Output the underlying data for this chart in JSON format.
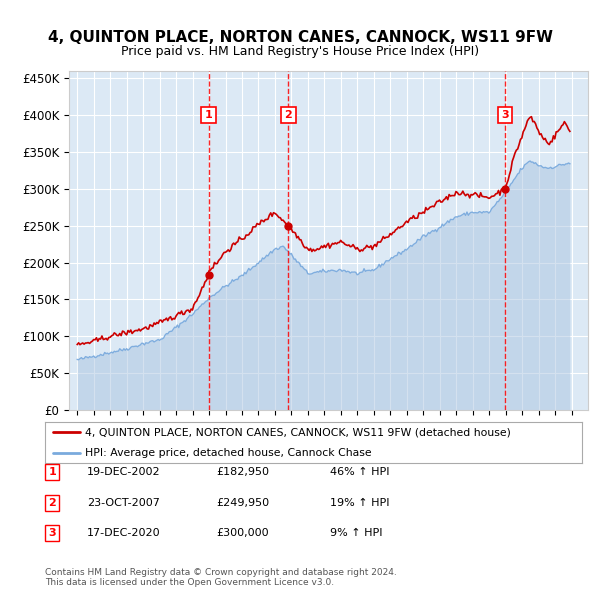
{
  "title": "4, QUINTON PLACE, NORTON CANES, CANNOCK, WS11 9FW",
  "subtitle": "Price paid vs. HM Land Registry's House Price Index (HPI)",
  "legend_line1": "4, QUINTON PLACE, NORTON CANES, CANNOCK, WS11 9FW (detached house)",
  "legend_line2": "HPI: Average price, detached house, Cannock Chase",
  "footer1": "Contains HM Land Registry data © Crown copyright and database right 2024.",
  "footer2": "This data is licensed under the Open Government Licence v3.0.",
  "transactions": [
    {
      "label": "1",
      "date": "19-DEC-2002",
      "price": 182950,
      "pct": "46% ↑ HPI",
      "x": 2002.97
    },
    {
      "label": "2",
      "date": "23-OCT-2007",
      "price": 249950,
      "pct": "19% ↑ HPI",
      "x": 2007.81
    },
    {
      "label": "3",
      "date": "17-DEC-2020",
      "price": 300000,
      "pct": "9% ↑ HPI",
      "x": 2020.97
    }
  ],
  "hpi_color": "#aac4e0",
  "price_color": "#cc0000",
  "hpi_line_color": "#7aaadd",
  "background_color": "#dce9f5",
  "ylim": [
    0,
    460000
  ],
  "xlim": [
    1994.5,
    2026.0
  ],
  "yticks": [
    0,
    50000,
    100000,
    150000,
    200000,
    250000,
    300000,
    350000,
    400000,
    450000
  ],
  "ytick_labels": [
    "£0",
    "£50K",
    "£100K",
    "£150K",
    "£200K",
    "£250K",
    "£300K",
    "£350K",
    "£400K",
    "£450K"
  ],
  "xticks": [
    1995,
    1996,
    1997,
    1998,
    1999,
    2000,
    2001,
    2002,
    2003,
    2004,
    2005,
    2006,
    2007,
    2008,
    2009,
    2010,
    2011,
    2012,
    2013,
    2014,
    2015,
    2016,
    2017,
    2018,
    2019,
    2020,
    2021,
    2022,
    2023,
    2024,
    2025
  ],
  "hpi_anchors_x": [
    1995.0,
    1996.0,
    1997.0,
    1998.0,
    1999.0,
    2000.0,
    2001.0,
    2002.0,
    2003.0,
    2004.0,
    2004.5,
    2005.0,
    2006.0,
    2007.0,
    2007.5,
    2008.0,
    2009.0,
    2010.0,
    2011.0,
    2012.0,
    2013.0,
    2014.0,
    2015.0,
    2016.0,
    2017.0,
    2018.0,
    2019.0,
    2020.0,
    2021.0,
    2021.5,
    2022.0,
    2022.5,
    2023.0,
    2023.5,
    2024.0,
    2024.5,
    2024.9
  ],
  "hpi_anchors_y": [
    68000,
    73000,
    78000,
    83000,
    90000,
    95000,
    112000,
    130000,
    152000,
    168000,
    175000,
    182000,
    200000,
    218000,
    222000,
    210000,
    185000,
    188000,
    190000,
    185000,
    190000,
    205000,
    218000,
    235000,
    248000,
    262000,
    268000,
    268000,
    295000,
    312000,
    328000,
    338000,
    332000,
    328000,
    330000,
    333000,
    335000
  ],
  "price_anchors_x": [
    1995.0,
    1996.0,
    1997.0,
    1998.0,
    1999.0,
    2000.0,
    2001.0,
    2002.0,
    2002.97,
    2003.0,
    2003.5,
    2004.0,
    2005.0,
    2006.0,
    2007.0,
    2007.81,
    2008.0,
    2008.5,
    2009.0,
    2009.5,
    2010.0,
    2011.0,
    2012.0,
    2013.0,
    2014.0,
    2015.0,
    2016.0,
    2017.0,
    2018.0,
    2019.0,
    2020.0,
    2020.97,
    2021.0,
    2021.5,
    2022.0,
    2022.3,
    2022.5,
    2022.8,
    2023.0,
    2023.3,
    2023.7,
    2024.0,
    2024.3,
    2024.6,
    2024.9
  ],
  "price_anchors_y": [
    88000,
    93000,
    100000,
    105000,
    110000,
    118000,
    128000,
    138000,
    182950,
    190000,
    200000,
    215000,
    232000,
    252000,
    268000,
    249950,
    245000,
    232000,
    218000,
    218000,
    222000,
    228000,
    218000,
    222000,
    238000,
    255000,
    268000,
    282000,
    295000,
    292000,
    288000,
    300000,
    302000,
    342000,
    372000,
    390000,
    398000,
    388000,
    378000,
    368000,
    362000,
    372000,
    382000,
    390000,
    378000
  ]
}
